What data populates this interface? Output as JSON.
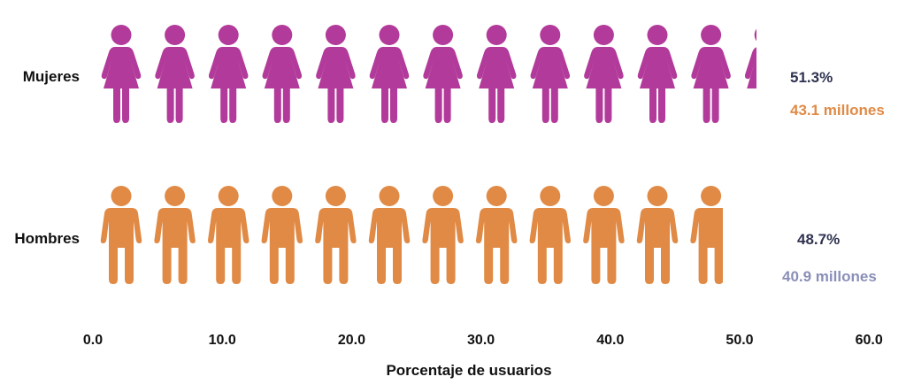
{
  "chart_data": {
    "type": "bar",
    "subtype": "pictogram",
    "categories": [
      "Mujeres",
      "Hombres"
    ],
    "values": [
      51.3,
      48.7
    ],
    "xlabel": "Porcentaje de usuarios",
    "xlim": [
      0,
      60
    ],
    "xticks": [
      "0.0",
      "10.0",
      "20.0",
      "30.0",
      "40.0",
      "50.0",
      "60.0"
    ],
    "grid": false,
    "annotations": [
      {
        "percent": "51.3%",
        "users": "43.1 millones"
      },
      {
        "percent": "48.7%",
        "users": "40.9 millones"
      }
    ]
  },
  "colors": {
    "women": "#b23a9a",
    "men": "#e08a45",
    "percent_text": "#2f3350",
    "women_users_text": "#e08a45",
    "men_users_text": "#8a8fb8"
  },
  "icons": {
    "women": "woman-icon",
    "men": "man-icon"
  }
}
